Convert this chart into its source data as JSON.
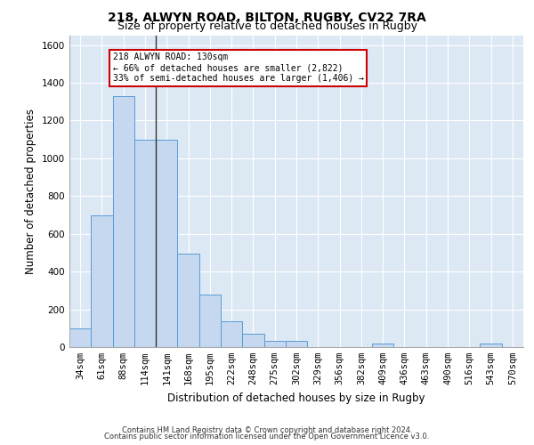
{
  "title_line1": "218, ALWYN ROAD, BILTON, RUGBY, CV22 7RA",
  "title_line2": "Size of property relative to detached houses in Rugby",
  "xlabel": "Distribution of detached houses by size in Rugby",
  "ylabel": "Number of detached properties",
  "footer_line1": "Contains HM Land Registry data © Crown copyright and database right 2024.",
  "footer_line2": "Contains public sector information licensed under the Open Government Licence v3.0.",
  "bin_labels": [
    "34sqm",
    "61sqm",
    "88sqm",
    "114sqm",
    "141sqm",
    "168sqm",
    "195sqm",
    "222sqm",
    "248sqm",
    "275sqm",
    "302sqm",
    "329sqm",
    "356sqm",
    "382sqm",
    "409sqm",
    "436sqm",
    "463sqm",
    "490sqm",
    "516sqm",
    "543sqm",
    "570sqm"
  ],
  "bar_heights": [
    97,
    700,
    1330,
    1100,
    1100,
    497,
    277,
    137,
    70,
    33,
    33,
    0,
    0,
    0,
    18,
    0,
    0,
    0,
    0,
    18,
    0
  ],
  "bar_color": "#c5d8f0",
  "bar_edge_color": "#5b9bd5",
  "annotation_text": "218 ALWYN ROAD: 130sqm\n← 66% of detached houses are smaller (2,822)\n33% of semi-detached houses are larger (1,406) →",
  "annotation_box_color": "#ffffff",
  "annotation_box_edge": "#cc0000",
  "vline_x": 3.5,
  "vline_color": "#333333",
  "ylim": [
    0,
    1650
  ],
  "yticks": [
    0,
    200,
    400,
    600,
    800,
    1000,
    1200,
    1400,
    1600
  ],
  "bg_color": "#dde8f5",
  "grid_color": "#ffffff",
  "title_fontsize": 10,
  "subtitle_fontsize": 9,
  "axis_label_fontsize": 8.5,
  "tick_fontsize": 7.5,
  "footer_fontsize": 6,
  "annotation_fontsize": 7
}
